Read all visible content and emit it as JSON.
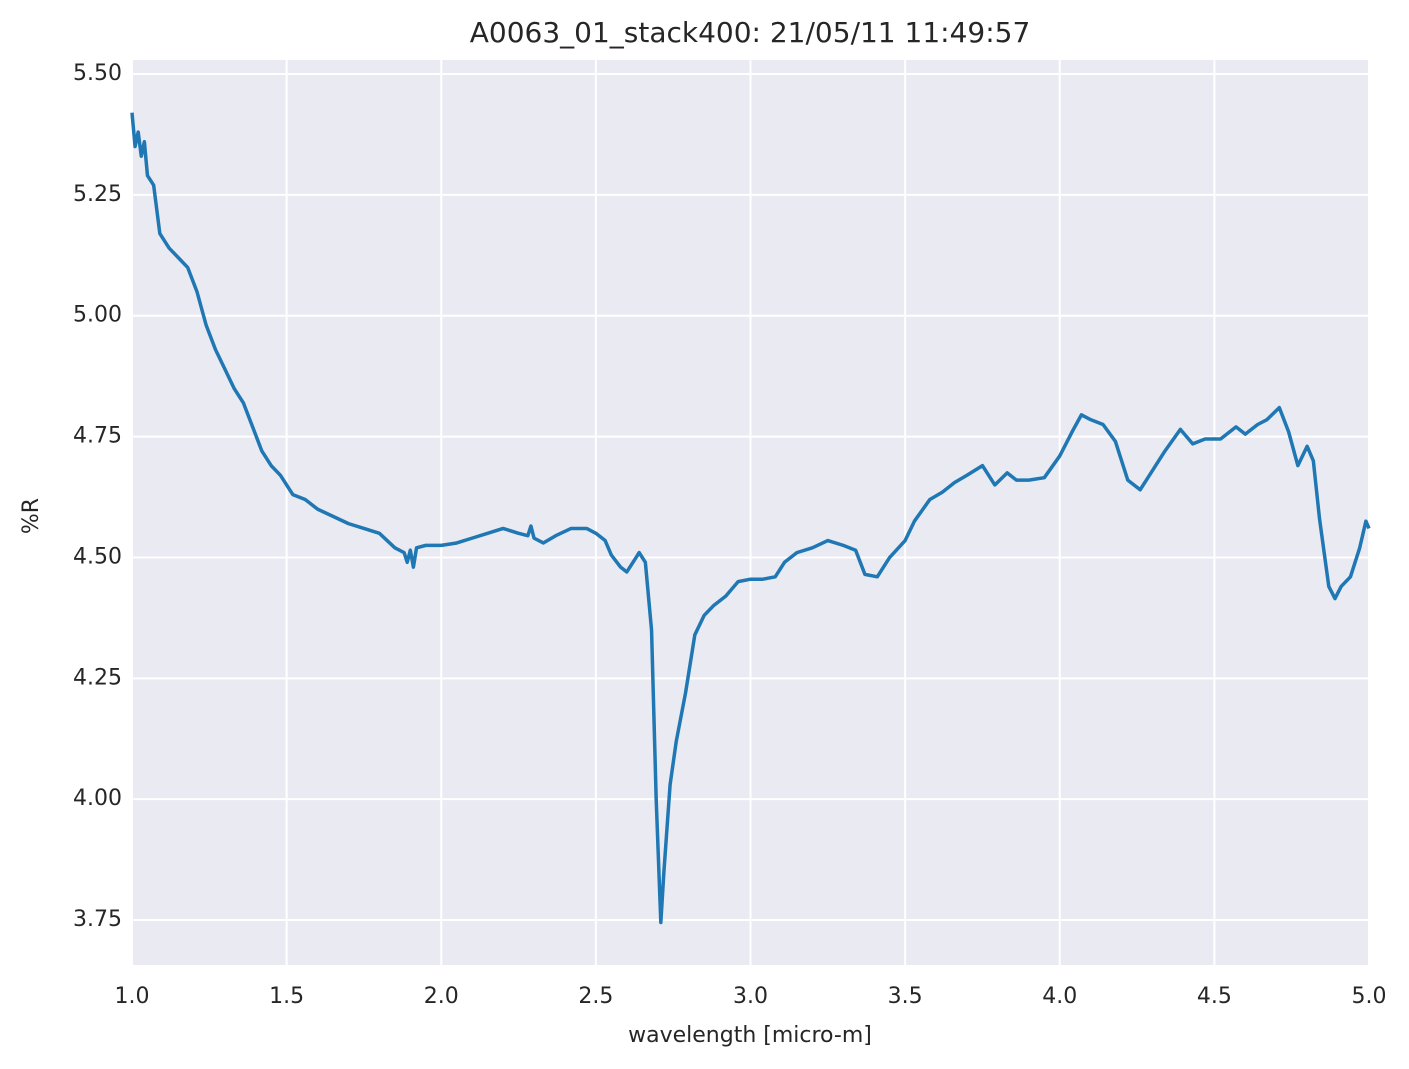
{
  "chart_data": {
    "type": "line",
    "title": "A0063_01_stack400:  21/05/11 11:49:57",
    "x_label": "wavelength [micro-m]",
    "y_label": "%R",
    "grid": true,
    "background": "#eaeaf2",
    "xlim": [
      1.0,
      5.0
    ],
    "ylim": [
      3.657,
      5.529
    ],
    "xticks": [
      {
        "value": 1.0,
        "label": "1.0"
      },
      {
        "value": 1.5,
        "label": "1.5"
      },
      {
        "value": 2.0,
        "label": "2.0"
      },
      {
        "value": 2.5,
        "label": "2.5"
      },
      {
        "value": 3.0,
        "label": "3.0"
      },
      {
        "value": 3.5,
        "label": "3.5"
      },
      {
        "value": 4.0,
        "label": "4.0"
      },
      {
        "value": 4.5,
        "label": "4.5"
      },
      {
        "value": 5.0,
        "label": "5.0"
      }
    ],
    "yticks": [
      3.75,
      {
        "value": 4.0,
        "label": "4.00"
      },
      4.25,
      {
        "value": 4.5,
        "label": "4.50"
      },
      4.75,
      {
        "value": 5.0,
        "label": "5.00"
      },
      5.25,
      {
        "value": 5.5,
        "label": "5.50"
      }
    ],
    "series": [
      {
        "color": "#1f77b4",
        "x": [
          1.0,
          1.01,
          1.02,
          1.03,
          1.04,
          1.05,
          1.07,
          1.09,
          1.12,
          1.15,
          1.18,
          1.21,
          1.24,
          1.27,
          1.3,
          1.33,
          1.36,
          1.39,
          1.42,
          1.45,
          1.48,
          1.52,
          1.56,
          1.6,
          1.65,
          1.7,
          1.75,
          1.8,
          1.85,
          1.88,
          1.89,
          1.9,
          1.91,
          1.92,
          1.95,
          2.0,
          2.05,
          2.1,
          2.15,
          2.2,
          2.25,
          2.28,
          2.29,
          2.3,
          2.33,
          2.37,
          2.42,
          2.47,
          2.5,
          2.53,
          2.55,
          2.58,
          2.6,
          2.62,
          2.64,
          2.66,
          2.68,
          2.695,
          2.71,
          2.72,
          2.74,
          2.76,
          2.79,
          2.82,
          2.85,
          2.88,
          2.92,
          2.96,
          3.0,
          3.04,
          3.08,
          3.11,
          3.15,
          3.2,
          3.25,
          3.3,
          3.34,
          3.37,
          3.41,
          3.45,
          3.5,
          3.53,
          3.58,
          3.62,
          3.66,
          3.7,
          3.75,
          3.79,
          3.83,
          3.86,
          3.9,
          3.95,
          4.0,
          4.04,
          4.07,
          4.1,
          4.14,
          4.18,
          4.22,
          4.26,
          4.3,
          4.34,
          4.39,
          4.43,
          4.47,
          4.52,
          4.57,
          4.6,
          4.64,
          4.67,
          4.71,
          4.74,
          4.77,
          4.8,
          4.82,
          4.84,
          4.87,
          4.89,
          4.91,
          4.94,
          4.97,
          4.99,
          5.0
        ],
        "values": [
          5.42,
          5.35,
          5.38,
          5.33,
          5.36,
          5.29,
          5.27,
          5.17,
          5.14,
          5.12,
          5.1,
          5.05,
          4.98,
          4.93,
          4.89,
          4.85,
          4.82,
          4.77,
          4.72,
          4.69,
          4.67,
          4.63,
          4.62,
          4.6,
          4.585,
          4.57,
          4.56,
          4.55,
          4.52,
          4.51,
          4.49,
          4.515,
          4.48,
          4.52,
          4.525,
          4.525,
          4.53,
          4.54,
          4.55,
          4.56,
          4.55,
          4.545,
          4.565,
          4.54,
          4.53,
          4.545,
          4.56,
          4.56,
          4.55,
          4.535,
          4.505,
          4.48,
          4.47,
          4.49,
          4.51,
          4.49,
          4.35,
          4.0,
          3.745,
          3.85,
          4.03,
          4.12,
          4.22,
          4.34,
          4.38,
          4.4,
          4.42,
          4.45,
          4.455,
          4.455,
          4.46,
          4.49,
          4.51,
          4.52,
          4.535,
          4.525,
          4.515,
          4.465,
          4.46,
          4.5,
          4.535,
          4.575,
          4.62,
          4.635,
          4.655,
          4.67,
          4.69,
          4.65,
          4.675,
          4.66,
          4.66,
          4.665,
          4.71,
          4.76,
          4.795,
          4.785,
          4.775,
          4.74,
          4.66,
          4.64,
          4.68,
          4.72,
          4.765,
          4.735,
          4.745,
          4.745,
          4.77,
          4.755,
          4.775,
          4.785,
          4.81,
          4.76,
          4.69,
          4.73,
          4.7,
          4.58,
          4.44,
          4.415,
          4.44,
          4.46,
          4.52,
          4.575,
          4.56
        ]
      }
    ]
  }
}
